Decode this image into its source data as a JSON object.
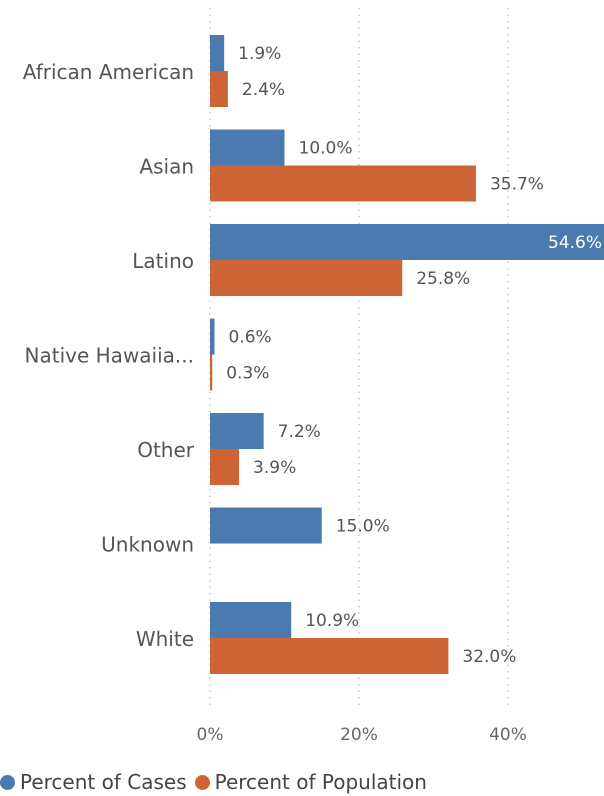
{
  "chart_data": {
    "type": "bar",
    "orientation": "horizontal",
    "categories": [
      "African American",
      "Asian",
      "Latino",
      "Native Hawaiia...",
      "Other",
      "Unknown",
      "White"
    ],
    "series": [
      {
        "name": "Percent of Cases",
        "values": [
          1.9,
          10.0,
          54.6,
          0.6,
          7.2,
          15.0,
          10.9
        ],
        "labels": [
          "1.9%",
          "10.0%",
          "54.6%",
          "0.6%",
          "7.2%",
          "15.0%",
          "10.9%"
        ],
        "color": "#4a7ab0"
      },
      {
        "name": "Percent of Population",
        "values": [
          2.4,
          35.7,
          25.8,
          0.3,
          3.9,
          null,
          32.0
        ],
        "labels": [
          "2.4%",
          "35.7%",
          "25.8%",
          "0.3%",
          "3.9%",
          "",
          "32.0%"
        ],
        "color": "#cc6435"
      }
    ],
    "x_ticks": [
      {
        "value": 0,
        "label": "0%"
      },
      {
        "value": 20,
        "label": "20%"
      },
      {
        "value": 40,
        "label": "40%"
      }
    ],
    "xlim": [
      0,
      53
    ],
    "gridlines": "dotted-vertical",
    "legend": "bottom-left",
    "title": "",
    "xlabel": "",
    "ylabel": ""
  }
}
